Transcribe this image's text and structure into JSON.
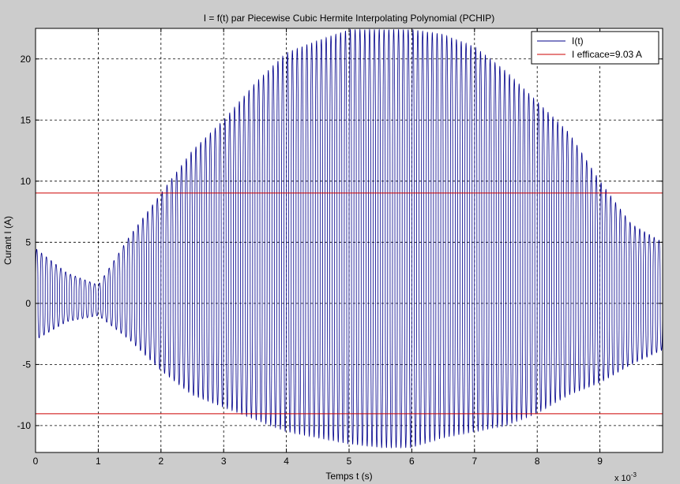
{
  "chart_data": {
    "type": "line",
    "title": "I = f(t) par Piecewise Cubic Hermite Interpolating Polynomial (PCHIP)",
    "xlabel": "Temps t (s)",
    "ylabel": "Curant I (A)",
    "x_exponent_label": "x 10",
    "x_exponent_power": "-3",
    "xlim": [
      0,
      0.01
    ],
    "ylim": [
      -12.2,
      22.5
    ],
    "x_ticks": [
      0,
      0.001,
      0.002,
      0.003,
      0.004,
      0.005,
      0.006,
      0.007,
      0.008,
      0.009
    ],
    "x_tick_labels": [
      "0",
      "1",
      "2",
      "3",
      "4",
      "5",
      "6",
      "7",
      "8",
      "9"
    ],
    "y_ticks": [
      -10,
      -5,
      0,
      5,
      10,
      15,
      20
    ],
    "y_tick_labels": [
      "-10",
      "-5",
      "0",
      "5",
      "10",
      "15",
      "20"
    ],
    "grid": true,
    "legend_position": "top-right",
    "series": [
      {
        "name": "I(t)",
        "color": "#00008b",
        "kind": "oscillating-signal",
        "oscillation_frequency_hz": 13000,
        "envelope_t": [
          0,
          0.0005,
          0.001,
          0.0015,
          0.002,
          0.0025,
          0.003,
          0.0035,
          0.004,
          0.0045,
          0.005,
          0.0055,
          0.006,
          0.0065,
          0.007,
          0.0075,
          0.008,
          0.0085,
          0.009,
          0.0095,
          0.01
        ],
        "envelope_max": [
          4.5,
          2.5,
          1.5,
          5.5,
          9.0,
          12.5,
          15.0,
          18.0,
          20.5,
          21.5,
          22.4,
          22.4,
          22.4,
          22.0,
          21.0,
          19.0,
          16.5,
          14.0,
          10.0,
          6.5,
          5.0
        ],
        "envelope_min": [
          -3.0,
          -1.5,
          -1.0,
          -3.0,
          -5.5,
          -7.5,
          -8.5,
          -9.5,
          -10.5,
          -11.0,
          -11.5,
          -11.8,
          -11.8,
          -11.0,
          -10.5,
          -10.0,
          -9.0,
          -7.5,
          -6.5,
          -5.0,
          -3.8
        ]
      },
      {
        "name": "I efficace=9.03 A",
        "color": "#cc0000",
        "kind": "hlines",
        "values": [
          9.03,
          -9.03
        ]
      }
    ]
  }
}
